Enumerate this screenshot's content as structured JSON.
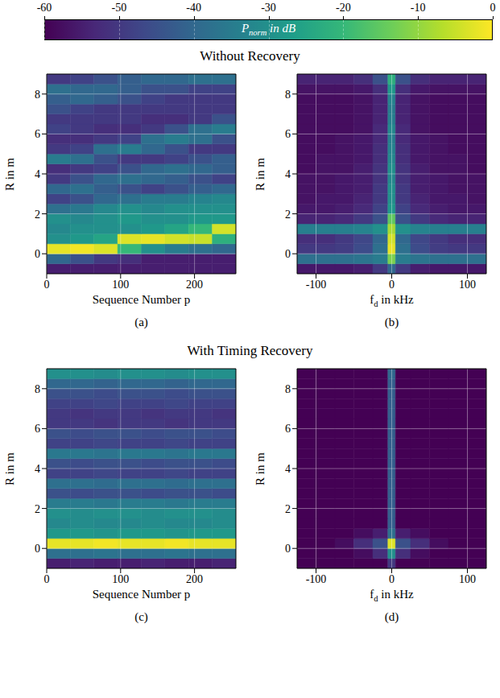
{
  "colorbar": {
    "label": {
      "base": "P",
      "sub": "norm",
      "text": " in dB"
    },
    "range": [
      -60,
      0
    ],
    "ticks": [
      -60,
      -50,
      -40,
      -30,
      -20,
      -10,
      0
    ]
  },
  "chart_data": [
    {
      "type": "heatmap",
      "group_title": "Without Recovery",
      "caption": "(a)",
      "x_label": "Sequence Number p",
      "y_label": "R in m",
      "xlim": [
        0,
        256
      ],
      "ylim": [
        -1,
        9
      ],
      "xticks": [
        0,
        100,
        200
      ],
      "yticks": [
        0,
        2,
        4,
        6,
        8
      ],
      "grid": true,
      "x_bins": [
        0,
        32,
        64,
        96,
        128,
        160,
        192,
        224,
        256
      ],
      "y_bins": [
        -1,
        -0.5,
        0,
        0.5,
        1,
        1.5,
        2,
        2.5,
        3,
        3.5,
        4,
        4.5,
        5,
        5.5,
        6,
        6.5,
        7,
        7.5,
        8,
        8.5,
        9
      ],
      "cells": [
        [
          -55,
          -55,
          -55,
          -55,
          -55,
          -55,
          -55,
          -55
        ],
        [
          -40,
          -45,
          -50,
          -52,
          -55,
          -55,
          -55,
          -55
        ],
        [
          -2,
          -1,
          -3,
          -20,
          -30,
          -35,
          -38,
          -40
        ],
        [
          -30,
          -28,
          -25,
          -3,
          -2,
          -4,
          -5,
          -22
        ],
        [
          -32,
          -30,
          -30,
          -30,
          -28,
          -25,
          -20,
          -4
        ],
        [
          -30,
          -32,
          -30,
          -28,
          -30,
          -30,
          -28,
          -28
        ],
        [
          -38,
          -36,
          -32,
          -30,
          -32,
          -30,
          -30,
          -30
        ],
        [
          -48,
          -45,
          -40,
          -38,
          -35,
          -35,
          -33,
          -32
        ],
        [
          -40,
          -38,
          -42,
          -45,
          -48,
          -45,
          -42,
          -40
        ],
        [
          -50,
          -45,
          -40,
          -38,
          -40,
          -42,
          -45,
          -48
        ],
        [
          -52,
          -50,
          -48,
          -45,
          -40,
          -38,
          -40,
          -42
        ],
        [
          -35,
          -38,
          -45,
          -50,
          -50,
          -48,
          -45,
          -42
        ],
        [
          -50,
          -48,
          -38,
          -35,
          -40,
          -45,
          -50,
          -50
        ],
        [
          -52,
          -52,
          -50,
          -48,
          -38,
          -35,
          -38,
          -45
        ],
        [
          -48,
          -50,
          -52,
          -52,
          -50,
          -45,
          -38,
          -35
        ],
        [
          -50,
          -50,
          -50,
          -50,
          -52,
          -52,
          -50,
          -45
        ],
        [
          -45,
          -48,
          -50,
          -50,
          -50,
          -50,
          -50,
          -50
        ],
        [
          -42,
          -40,
          -42,
          -45,
          -48,
          -50,
          -50,
          -50
        ],
        [
          -38,
          -40,
          -40,
          -42,
          -45,
          -45,
          -48,
          -48
        ],
        [
          -50,
          -48,
          -45,
          -42,
          -40,
          -40,
          -38,
          -38
        ]
      ]
    },
    {
      "type": "heatmap",
      "group_title": "Without Recovery",
      "caption": "(b)",
      "x_label": {
        "base": "f",
        "sub": "d",
        "text": " in kHz"
      },
      "y_label": "R in m",
      "xlim": [
        -125,
        125
      ],
      "ylim": [
        -1,
        9
      ],
      "xticks": [
        -100,
        0,
        100
      ],
      "yticks": [
        0,
        2,
        4,
        6,
        8
      ],
      "grid": true,
      "x_bins": [
        -125,
        -100,
        -75,
        -50,
        -25,
        -5,
        5,
        25,
        50,
        75,
        100,
        125
      ],
      "y_bins": [
        -1,
        -0.5,
        0,
        0.5,
        1,
        1.5,
        2,
        2.5,
        3,
        3.5,
        4,
        4.5,
        5,
        5.5,
        6,
        6.5,
        7,
        7.5,
        8,
        8.5,
        9
      ],
      "cells": [
        [
          -56,
          -56,
          -56,
          -55,
          -50,
          -40,
          -50,
          -55,
          -56,
          -56,
          -56
        ],
        [
          -38,
          -38,
          -38,
          -37,
          -35,
          -12,
          -35,
          -37,
          -38,
          -38,
          -38
        ],
        [
          -50,
          -50,
          -49,
          -46,
          -38,
          -2,
          -38,
          -46,
          -49,
          -50,
          -50
        ],
        [
          -52,
          -52,
          -50,
          -47,
          -40,
          -4,
          -40,
          -47,
          -50,
          -52,
          -52
        ],
        [
          -34,
          -34,
          -34,
          -33,
          -30,
          -8,
          -30,
          -33,
          -34,
          -34,
          -34
        ],
        [
          -54,
          -54,
          -53,
          -50,
          -45,
          -15,
          -45,
          -50,
          -53,
          -54,
          -54
        ],
        [
          -56,
          -56,
          -55,
          -53,
          -48,
          -28,
          -48,
          -53,
          -55,
          -56,
          -56
        ],
        [
          -57,
          -56,
          -56,
          -54,
          -50,
          -30,
          -50,
          -54,
          -56,
          -56,
          -57
        ],
        [
          -57,
          -57,
          -56,
          -55,
          -50,
          -30,
          -50,
          -55,
          -56,
          -57,
          -57
        ],
        [
          -57,
          -57,
          -56,
          -55,
          -51,
          -32,
          -51,
          -55,
          -56,
          -57,
          -57
        ],
        [
          -58,
          -57,
          -57,
          -55,
          -51,
          -30,
          -51,
          -55,
          -57,
          -57,
          -58
        ],
        [
          -58,
          -57,
          -57,
          -56,
          -52,
          -32,
          -52,
          -56,
          -57,
          -57,
          -58
        ],
        [
          -58,
          -58,
          -57,
          -56,
          -52,
          -33,
          -52,
          -56,
          -57,
          -58,
          -58
        ],
        [
          -58,
          -58,
          -57,
          -56,
          -53,
          -34,
          -53,
          -56,
          -57,
          -58,
          -58
        ],
        [
          -58,
          -58,
          -58,
          -57,
          -53,
          -32,
          -53,
          -57,
          -58,
          -58,
          -58
        ],
        [
          -58,
          -58,
          -58,
          -57,
          -54,
          -34,
          -54,
          -57,
          -58,
          -58,
          -58
        ],
        [
          -58,
          -58,
          -58,
          -57,
          -54,
          -35,
          -54,
          -57,
          -58,
          -58,
          -58
        ],
        [
          -58,
          -58,
          -58,
          -57,
          -54,
          -33,
          -54,
          -57,
          -58,
          -58,
          -58
        ],
        [
          -57,
          -57,
          -57,
          -56,
          -52,
          -28,
          -52,
          -56,
          -57,
          -57,
          -57
        ],
        [
          -54,
          -54,
          -54,
          -52,
          -45,
          -22,
          -45,
          -52,
          -54,
          -54,
          -54
        ]
      ]
    },
    {
      "type": "heatmap",
      "group_title": "With Timing Recovery",
      "caption": "(c)",
      "x_label": "Sequence Number p",
      "y_label": "R in m",
      "xlim": [
        0,
        256
      ],
      "ylim": [
        -1,
        9
      ],
      "xticks": [
        0,
        100,
        200
      ],
      "yticks": [
        0,
        2,
        4,
        6,
        8
      ],
      "grid": true,
      "x_bins": [
        0,
        32,
        64,
        96,
        128,
        160,
        192,
        224,
        256
      ],
      "y_bins": [
        -1,
        -0.5,
        0,
        0.5,
        1,
        1.5,
        2,
        2.5,
        3,
        3.5,
        4,
        4.5,
        5,
        5.5,
        6,
        6.5,
        7,
        7.5,
        8,
        8.5,
        9
      ],
      "cells": [
        [
          -55,
          -54,
          -55,
          -55,
          -54,
          -55,
          -55,
          -54
        ],
        [
          -38,
          -38,
          -37,
          -38,
          -38,
          -37,
          -38,
          -38
        ],
        [
          -2,
          -2,
          -1,
          -2,
          -2,
          -1,
          -2,
          -2
        ],
        [
          -28,
          -28,
          -29,
          -28,
          -28,
          -29,
          -28,
          -28
        ],
        [
          -32,
          -31,
          -32,
          -32,
          -31,
          -32,
          -32,
          -31
        ],
        [
          -30,
          -31,
          -30,
          -30,
          -31,
          -30,
          -30,
          -31
        ],
        [
          -35,
          -35,
          -36,
          -35,
          -35,
          -36,
          -35,
          -35
        ],
        [
          -45,
          -46,
          -45,
          -45,
          -46,
          -45,
          -45,
          -46
        ],
        [
          -38,
          -38,
          -39,
          -38,
          -38,
          -39,
          -38,
          -38
        ],
        [
          -48,
          -48,
          -47,
          -48,
          -48,
          -47,
          -48,
          -48
        ],
        [
          -45,
          -46,
          -45,
          -45,
          -46,
          -45,
          -45,
          -46
        ],
        [
          -36,
          -36,
          -37,
          -36,
          -36,
          -37,
          -36,
          -36
        ],
        [
          -48,
          -48,
          -47,
          -48,
          -48,
          -47,
          -48,
          -48
        ],
        [
          -45,
          -46,
          -45,
          -45,
          -46,
          -45,
          -45,
          -46
        ],
        [
          -50,
          -50,
          -51,
          -50,
          -50,
          -51,
          -50,
          -50
        ],
        [
          -50,
          -51,
          -50,
          -50,
          -51,
          -50,
          -50,
          -51
        ],
        [
          -48,
          -48,
          -47,
          -48,
          -48,
          -47,
          -48,
          -48
        ],
        [
          -45,
          -45,
          -46,
          -45,
          -45,
          -46,
          -45,
          -45
        ],
        [
          -40,
          -40,
          -41,
          -40,
          -40,
          -41,
          -40,
          -40
        ],
        [
          -30,
          -30,
          -31,
          -30,
          -30,
          -31,
          -30,
          -30
        ]
      ]
    },
    {
      "type": "heatmap",
      "group_title": "With Timing Recovery",
      "caption": "(d)",
      "x_label": {
        "base": "f",
        "sub": "d",
        "text": " in kHz"
      },
      "y_label": "R in m",
      "xlim": [
        -125,
        125
      ],
      "ylim": [
        -1,
        9
      ],
      "xticks": [
        -100,
        0,
        100
      ],
      "yticks": [
        0,
        2,
        4,
        6,
        8
      ],
      "grid": true,
      "x_bins": [
        -125,
        -100,
        -75,
        -50,
        -25,
        -5,
        5,
        25,
        50,
        75,
        100,
        125
      ],
      "y_bins": [
        -1,
        -0.5,
        0,
        0.5,
        1,
        1.5,
        2,
        2.5,
        3,
        3.5,
        4,
        4.5,
        5,
        5.5,
        6,
        6.5,
        7,
        7.5,
        8,
        8.5,
        9
      ],
      "cells": [
        [
          -60,
          -60,
          -60,
          -60,
          -60,
          -50,
          -60,
          -60,
          -60,
          -60,
          -60
        ],
        [
          -60,
          -60,
          -60,
          -58,
          -52,
          -30,
          -52,
          -58,
          -60,
          -60,
          -60
        ],
        [
          -60,
          -60,
          -58,
          -52,
          -45,
          -3,
          -45,
          -52,
          -58,
          -60,
          -60
        ],
        [
          -60,
          -60,
          -60,
          -58,
          -55,
          -38,
          -55,
          -58,
          -60,
          -60,
          -60
        ],
        [
          -60,
          -60,
          -60,
          -60,
          -60,
          -42,
          -60,
          -60,
          -60,
          -60,
          -60
        ],
        [
          -60,
          -60,
          -60,
          -60,
          -60,
          -42,
          -60,
          -60,
          -60,
          -60,
          -60
        ],
        [
          -60,
          -60,
          -60,
          -60,
          -60,
          -42,
          -60,
          -60,
          -60,
          -60,
          -60
        ],
        [
          -60,
          -60,
          -60,
          -60,
          -60,
          -42,
          -60,
          -60,
          -60,
          -60,
          -60
        ],
        [
          -60,
          -60,
          -60,
          -60,
          -60,
          -42,
          -60,
          -60,
          -60,
          -60,
          -60
        ],
        [
          -60,
          -60,
          -60,
          -60,
          -60,
          -42,
          -60,
          -60,
          -60,
          -60,
          -60
        ],
        [
          -60,
          -60,
          -60,
          -60,
          -60,
          -42,
          -60,
          -60,
          -60,
          -60,
          -60
        ],
        [
          -60,
          -60,
          -60,
          -60,
          -60,
          -42,
          -60,
          -60,
          -60,
          -60,
          -60
        ],
        [
          -60,
          -60,
          -60,
          -60,
          -60,
          -42,
          -60,
          -60,
          -60,
          -60,
          -60
        ],
        [
          -60,
          -60,
          -60,
          -60,
          -60,
          -42,
          -60,
          -60,
          -60,
          -60,
          -60
        ],
        [
          -60,
          -60,
          -60,
          -60,
          -60,
          -42,
          -60,
          -60,
          -60,
          -60,
          -60
        ],
        [
          -60,
          -60,
          -60,
          -60,
          -60,
          -42,
          -60,
          -60,
          -60,
          -60,
          -60
        ],
        [
          -60,
          -60,
          -60,
          -60,
          -60,
          -42,
          -60,
          -60,
          -60,
          -60,
          -60
        ],
        [
          -60,
          -60,
          -60,
          -60,
          -60,
          -42,
          -60,
          -60,
          -60,
          -60,
          -60
        ],
        [
          -60,
          -60,
          -60,
          -60,
          -60,
          -42,
          -60,
          -60,
          -60,
          -60,
          -60
        ],
        [
          -60,
          -60,
          -60,
          -60,
          -60,
          -40,
          -60,
          -60,
          -60,
          -60,
          -60
        ]
      ]
    }
  ]
}
